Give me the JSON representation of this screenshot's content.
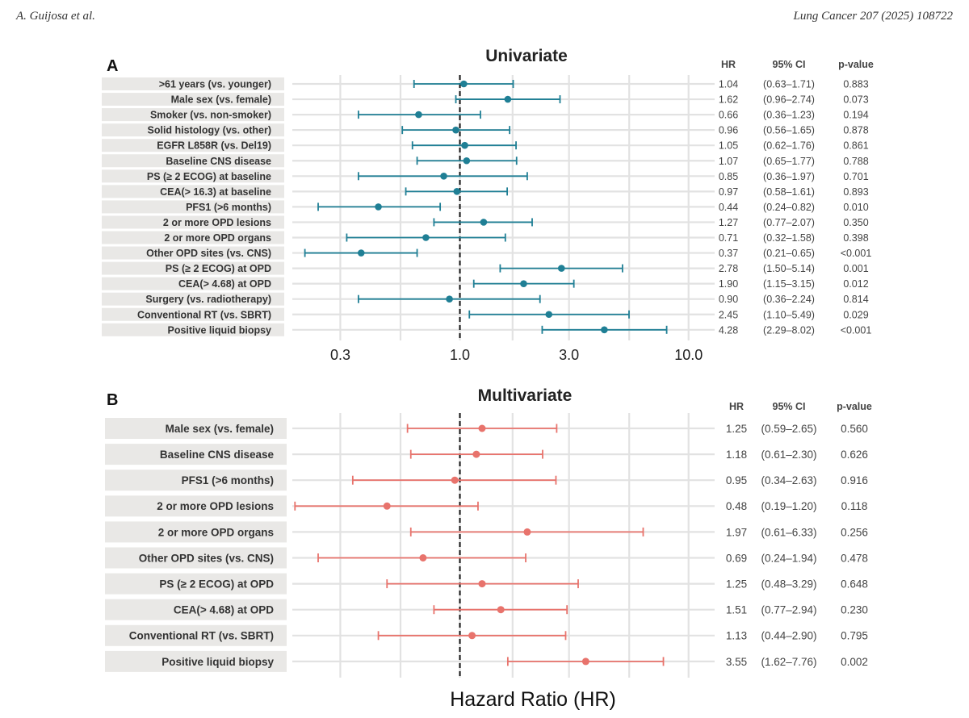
{
  "page": {
    "header_left": "A. Guijosa et al.",
    "header_right": "Lung Cancer 207 (2025) 108722"
  },
  "chart_data": [
    {
      "type": "forest",
      "panel": "A",
      "title": "Univariate",
      "scale": "log",
      "xlim": [
        0.185,
        13.0
      ],
      "ticks": [
        0.3,
        1.0,
        3.0,
        10.0
      ],
      "tick_labels": [
        "0.3",
        "1.0",
        "3.0",
        "10.0"
      ],
      "gridlines": [
        0.3,
        0.55,
        1.0,
        1.7,
        3.0,
        5.5,
        10.0
      ],
      "reference_line": 1.0,
      "color": "#1f7f95",
      "column_headers": {
        "hr": "HR",
        "ci": "95% CI",
        "p": "p-value"
      },
      "rows": [
        {
          "label": ">61 years (vs. younger)",
          "hr": 1.04,
          "lo": 0.63,
          "hi": 1.71,
          "hr_text": "1.04",
          "ci_text": "(0.63–1.71)",
          "p_text": "0.883"
        },
        {
          "label": "Male sex (vs. female)",
          "hr": 1.62,
          "lo": 0.96,
          "hi": 2.74,
          "hr_text": "1.62",
          "ci_text": "(0.96–2.74)",
          "p_text": "0.073"
        },
        {
          "label": "Smoker (vs. non-smoker)",
          "hr": 0.66,
          "lo": 0.36,
          "hi": 1.23,
          "hr_text": "0.66",
          "ci_text": "(0.36–1.23)",
          "p_text": "0.194"
        },
        {
          "label": "Solid histology (vs. other)",
          "hr": 0.96,
          "lo": 0.56,
          "hi": 1.65,
          "hr_text": "0.96",
          "ci_text": "(0.56–1.65)",
          "p_text": "0.878"
        },
        {
          "label": "EGFR L858R (vs. Del19)",
          "hr": 1.05,
          "lo": 0.62,
          "hi": 1.76,
          "hr_text": "1.05",
          "ci_text": "(0.62–1.76)",
          "p_text": "0.861"
        },
        {
          "label": "Baseline CNS disease",
          "hr": 1.07,
          "lo": 0.65,
          "hi": 1.77,
          "hr_text": "1.07",
          "ci_text": "(0.65–1.77)",
          "p_text": "0.788"
        },
        {
          "label": "PS (≥ 2 ECOG) at baseline",
          "hr": 0.85,
          "lo": 0.36,
          "hi": 1.97,
          "hr_text": "0.85",
          "ci_text": "(0.36–1.97)",
          "p_text": "0.701"
        },
        {
          "label": "CEA(> 16.3) at baseline",
          "hr": 0.97,
          "lo": 0.58,
          "hi": 1.61,
          "hr_text": "0.97",
          "ci_text": "(0.58–1.61)",
          "p_text": "0.893"
        },
        {
          "label": "PFS1 (>6 months)",
          "hr": 0.44,
          "lo": 0.24,
          "hi": 0.82,
          "hr_text": "0.44",
          "ci_text": "(0.24–0.82)",
          "p_text": "0.010"
        },
        {
          "label": "2 or more OPD lesions",
          "hr": 1.27,
          "lo": 0.77,
          "hi": 2.07,
          "hr_text": "1.27",
          "ci_text": "(0.77–2.07)",
          "p_text": "0.350"
        },
        {
          "label": "2 or more OPD organs",
          "hr": 0.71,
          "lo": 0.32,
          "hi": 1.58,
          "hr_text": "0.71",
          "ci_text": "(0.32–1.58)",
          "p_text": "0.398"
        },
        {
          "label": "Other OPD sites (vs. CNS)",
          "hr": 0.37,
          "lo": 0.21,
          "hi": 0.65,
          "hr_text": "0.37",
          "ci_text": "(0.21–0.65)",
          "p_text": "<0.001"
        },
        {
          "label": "PS (≥ 2 ECOG) at OPD",
          "hr": 2.78,
          "lo": 1.5,
          "hi": 5.14,
          "hr_text": "2.78",
          "ci_text": "(1.50–5.14)",
          "p_text": "0.001"
        },
        {
          "label": "CEA(> 4.68) at OPD",
          "hr": 1.9,
          "lo": 1.15,
          "hi": 3.15,
          "hr_text": "1.90",
          "ci_text": "(1.15–3.15)",
          "p_text": "0.012"
        },
        {
          "label": "Surgery (vs. radiotherapy)",
          "hr": 0.9,
          "lo": 0.36,
          "hi": 2.24,
          "hr_text": "0.90",
          "ci_text": "(0.36–2.24)",
          "p_text": "0.814"
        },
        {
          "label": "Conventional RT (vs. SBRT)",
          "hr": 2.45,
          "lo": 1.1,
          "hi": 5.49,
          "hr_text": "2.45",
          "ci_text": "(1.10–5.49)",
          "p_text": "0.029"
        },
        {
          "label": "Positive liquid biopsy",
          "hr": 4.28,
          "lo": 2.29,
          "hi": 8.02,
          "hr_text": "4.28",
          "ci_text": "(2.29–8.02)",
          "p_text": "<0.001"
        }
      ]
    },
    {
      "type": "forest",
      "panel": "B",
      "title": "Multivariate",
      "scale": "log",
      "xlim": [
        0.185,
        13.0
      ],
      "gridlines": [
        0.3,
        0.55,
        1.0,
        1.7,
        3.0,
        5.5,
        10.0
      ],
      "reference_line": 1.0,
      "color": "#e8736c",
      "xlabel": "Hazard Ratio (HR)",
      "column_headers": {
        "hr": "HR",
        "ci": "95% CI",
        "p": "p-value"
      },
      "rows": [
        {
          "label": "Male sex (vs. female)",
          "hr": 1.25,
          "lo": 0.59,
          "hi": 2.65,
          "hr_text": "1.25",
          "ci_text": "(0.59–2.65)",
          "p_text": "0.560"
        },
        {
          "label": "Baseline CNS disease",
          "hr": 1.18,
          "lo": 0.61,
          "hi": 2.3,
          "hr_text": "1.18",
          "ci_text": "(0.61–2.30)",
          "p_text": "0.626"
        },
        {
          "label": "PFS1 (>6 months)",
          "hr": 0.95,
          "lo": 0.34,
          "hi": 2.63,
          "hr_text": "0.95",
          "ci_text": "(0.34–2.63)",
          "p_text": "0.916"
        },
        {
          "label": "2 or more OPD lesions",
          "hr": 0.48,
          "lo": 0.19,
          "hi": 1.2,
          "hr_text": "0.48",
          "ci_text": "(0.19–1.20)",
          "p_text": "0.118"
        },
        {
          "label": "2 or more OPD organs",
          "hr": 1.97,
          "lo": 0.61,
          "hi": 6.33,
          "hr_text": "1.97",
          "ci_text": "(0.61–6.33)",
          "p_text": "0.256"
        },
        {
          "label": "Other OPD sites (vs. CNS)",
          "hr": 0.69,
          "lo": 0.24,
          "hi": 1.94,
          "hr_text": "0.69",
          "ci_text": "(0.24–1.94)",
          "p_text": "0.478"
        },
        {
          "label": "PS (≥ 2 ECOG) at OPD",
          "hr": 1.25,
          "lo": 0.48,
          "hi": 3.29,
          "hr_text": "1.25",
          "ci_text": "(0.48–3.29)",
          "p_text": "0.648"
        },
        {
          "label": "CEA(> 4.68) at OPD",
          "hr": 1.51,
          "lo": 0.77,
          "hi": 2.94,
          "hr_text": "1.51",
          "ci_text": "(0.77–2.94)",
          "p_text": "0.230"
        },
        {
          "label": "Conventional RT (vs. SBRT)",
          "hr": 1.13,
          "lo": 0.44,
          "hi": 2.9,
          "hr_text": "1.13",
          "ci_text": "(0.44–2.90)",
          "p_text": "0.795"
        },
        {
          "label": "Positive liquid biopsy",
          "hr": 3.55,
          "lo": 1.62,
          "hi": 7.76,
          "hr_text": "3.55",
          "ci_text": "(1.62–7.76)",
          "p_text": "0.002"
        }
      ]
    }
  ]
}
